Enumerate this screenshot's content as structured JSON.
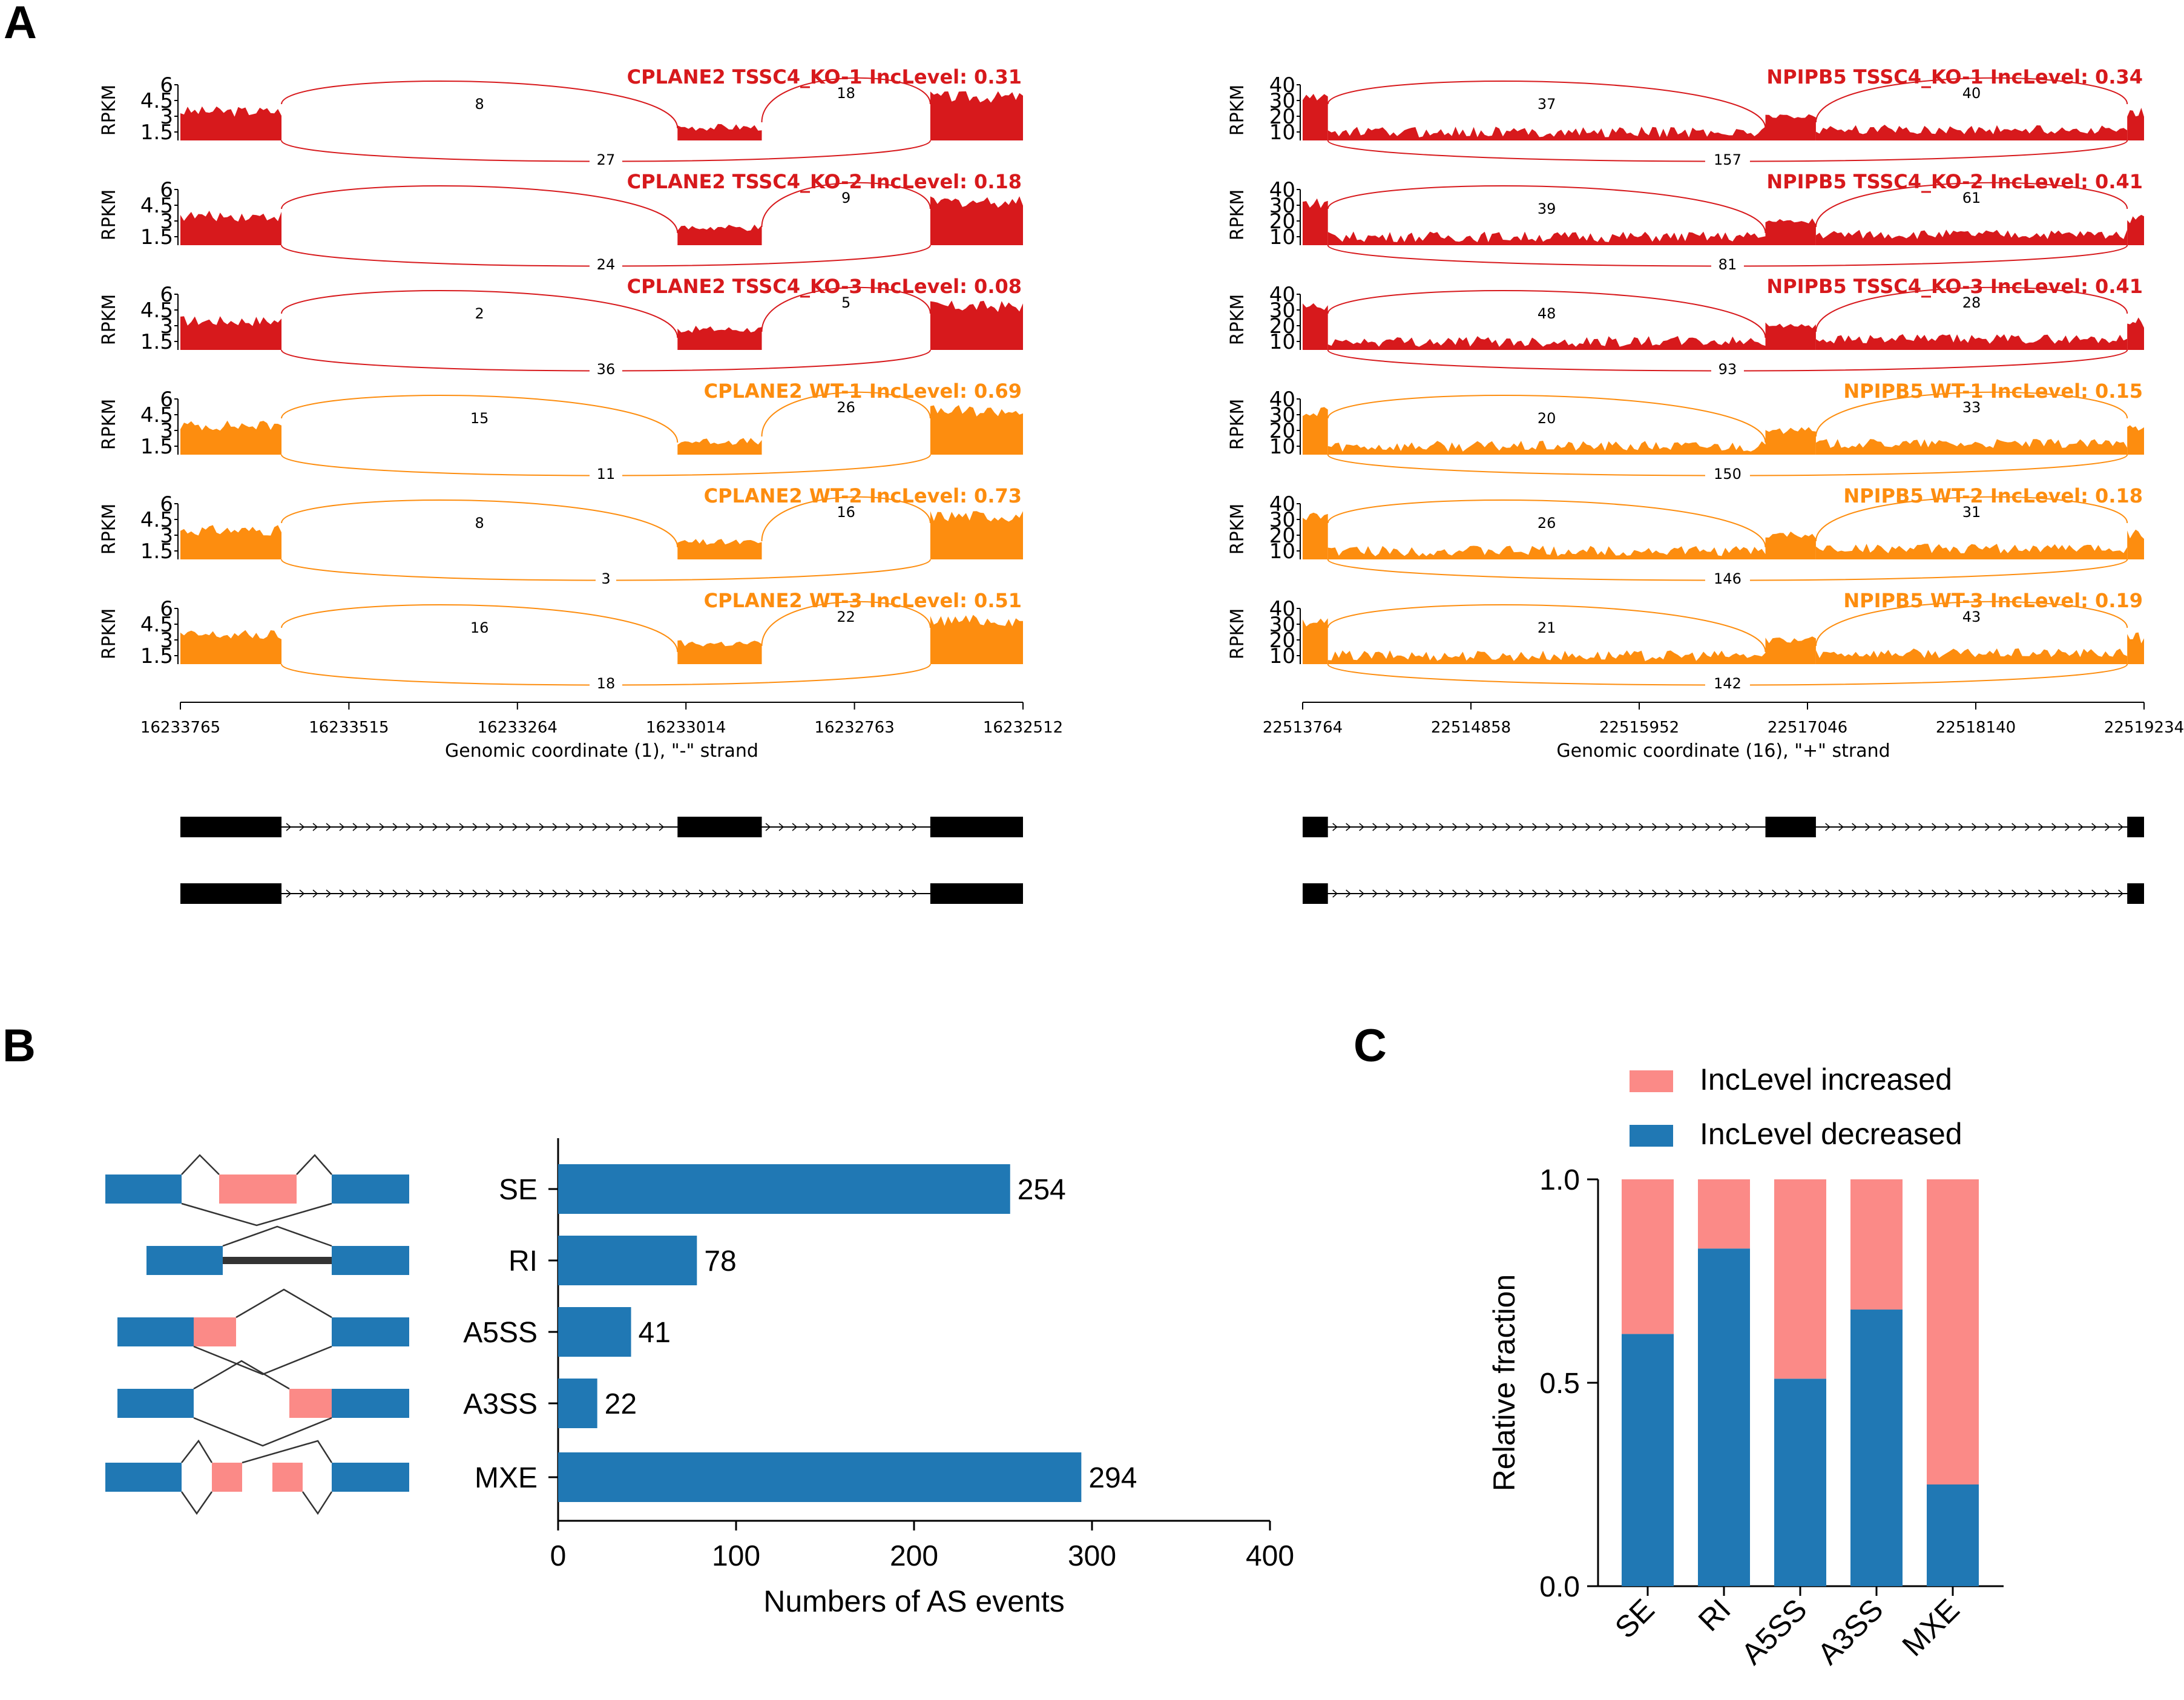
{
  "panels": {
    "a": "A",
    "b": "B",
    "c": "C"
  },
  "colors": {
    "ko": "#d7191c",
    "wt": "#fd8d0f",
    "blue": "#2078b4",
    "pink": "#fb8a87",
    "exon": "#000000"
  },
  "sashimi": [
    {
      "gene": "CPLANE2",
      "y_ticks": [
        "1.5",
        "3",
        "4.5",
        "6"
      ],
      "y_label": "RPKM",
      "x_ticks": [
        "16233765",
        "16233515",
        "16233264",
        "16233014",
        "16232763",
        "16232512"
      ],
      "x_label": "Genomic coordinate (1), \"-\" strand",
      "exon_fractions": {
        "exon1_end": 0.12,
        "exon2_start": 0.59,
        "exon2_end": 0.69,
        "exon3_start": 0.89
      },
      "tracks": [
        {
          "title": "CPLANE2 TSSC4_KO-1 IncLevel: 0.31",
          "group": "ko",
          "junctions": {
            "up1": "8",
            "up2": "18",
            "skip": "27"
          }
        },
        {
          "title": "CPLANE2 TSSC4_KO-2 IncLevel: 0.18",
          "group": "ko",
          "junctions": {
            "up1": "",
            "up2": "9",
            "skip": "24"
          }
        },
        {
          "title": "CPLANE2 TSSC4_KO-3 IncLevel: 0.08",
          "group": "ko",
          "junctions": {
            "up1": "2",
            "up2": "5",
            "skip": "36"
          }
        },
        {
          "title": "CPLANE2 WT-1 IncLevel: 0.69",
          "group": "wt",
          "junctions": {
            "up1": "15",
            "up2": "26",
            "skip": "11"
          }
        },
        {
          "title": "CPLANE2 WT-2 IncLevel: 0.73",
          "group": "wt",
          "junctions": {
            "up1": "8",
            "up2": "16",
            "skip": "3"
          }
        },
        {
          "title": "CPLANE2 WT-3 IncLevel: 0.51",
          "group": "wt",
          "junctions": {
            "up1": "16",
            "up2": "22",
            "skip": "18"
          }
        }
      ]
    },
    {
      "gene": "NPIPB5",
      "y_ticks": [
        "10",
        "20",
        "30",
        "40"
      ],
      "y_label": "RPKM",
      "x_ticks": [
        "22513764",
        "22514858",
        "22515952",
        "22517046",
        "22518140",
        "22519234"
      ],
      "x_label": "Genomic coordinate (16), \"+\" strand",
      "exon_fractions": {
        "exon1_end": 0.03,
        "exon2_start": 0.55,
        "exon2_end": 0.61,
        "exon3_start": 0.98
      },
      "tracks": [
        {
          "title": "NPIPB5 TSSC4_KO-1 IncLevel: 0.34",
          "group": "ko",
          "junctions": {
            "up1": "37",
            "up2": "40",
            "skip": "157"
          }
        },
        {
          "title": "NPIPB5 TSSC4_KO-2 IncLevel: 0.41",
          "group": "ko",
          "junctions": {
            "up1": "39",
            "up2": "61",
            "skip": "81"
          }
        },
        {
          "title": "NPIPB5 TSSC4_KO-3 IncLevel: 0.41",
          "group": "ko",
          "junctions": {
            "up1": "48",
            "up2": "28",
            "skip": "93"
          }
        },
        {
          "title": "NPIPB5 WT-1 IncLevel: 0.15",
          "group": "wt",
          "junctions": {
            "up1": "20",
            "up2": "33",
            "skip": "150"
          }
        },
        {
          "title": "NPIPB5 WT-2 IncLevel: 0.18",
          "group": "wt",
          "junctions": {
            "up1": "26",
            "up2": "31",
            "skip": "146"
          }
        },
        {
          "title": "NPIPB5 WT-3 IncLevel: 0.19",
          "group": "wt",
          "junctions": {
            "up1": "21",
            "up2": "43",
            "skip": "142"
          }
        }
      ]
    }
  ],
  "chart_data": [
    {
      "type": "bar",
      "orientation": "horizontal",
      "categories": [
        "SE",
        "RI",
        "A5SS",
        "A3SS",
        "MXE"
      ],
      "values": [
        254,
        78,
        41,
        22,
        294
      ],
      "value_labels": [
        "254",
        "78",
        "41",
        "22",
        "294"
      ],
      "xlabel": "Numbers of AS events",
      "x_ticks": [
        "0",
        "100",
        "200",
        "300",
        "400"
      ],
      "xlim": [
        0,
        400
      ]
    },
    {
      "type": "bar",
      "stacked": true,
      "categories": [
        "SE",
        "RI",
        "A5SS",
        "A3SS",
        "MXE"
      ],
      "series": [
        {
          "name": "IncLevel decreased",
          "values": [
            0.62,
            0.83,
            0.51,
            0.68,
            0.25
          ]
        },
        {
          "name": "IncLevel increased",
          "values": [
            0.38,
            0.17,
            0.49,
            0.32,
            0.75
          ]
        }
      ],
      "legend_order": [
        "IncLevel increased",
        "IncLevel decreased"
      ],
      "ylabel": "Relative fraction",
      "y_ticks": [
        "0.0",
        "0.5",
        "1.0"
      ],
      "ylim": [
        0,
        1
      ],
      "legend": "top"
    }
  ]
}
